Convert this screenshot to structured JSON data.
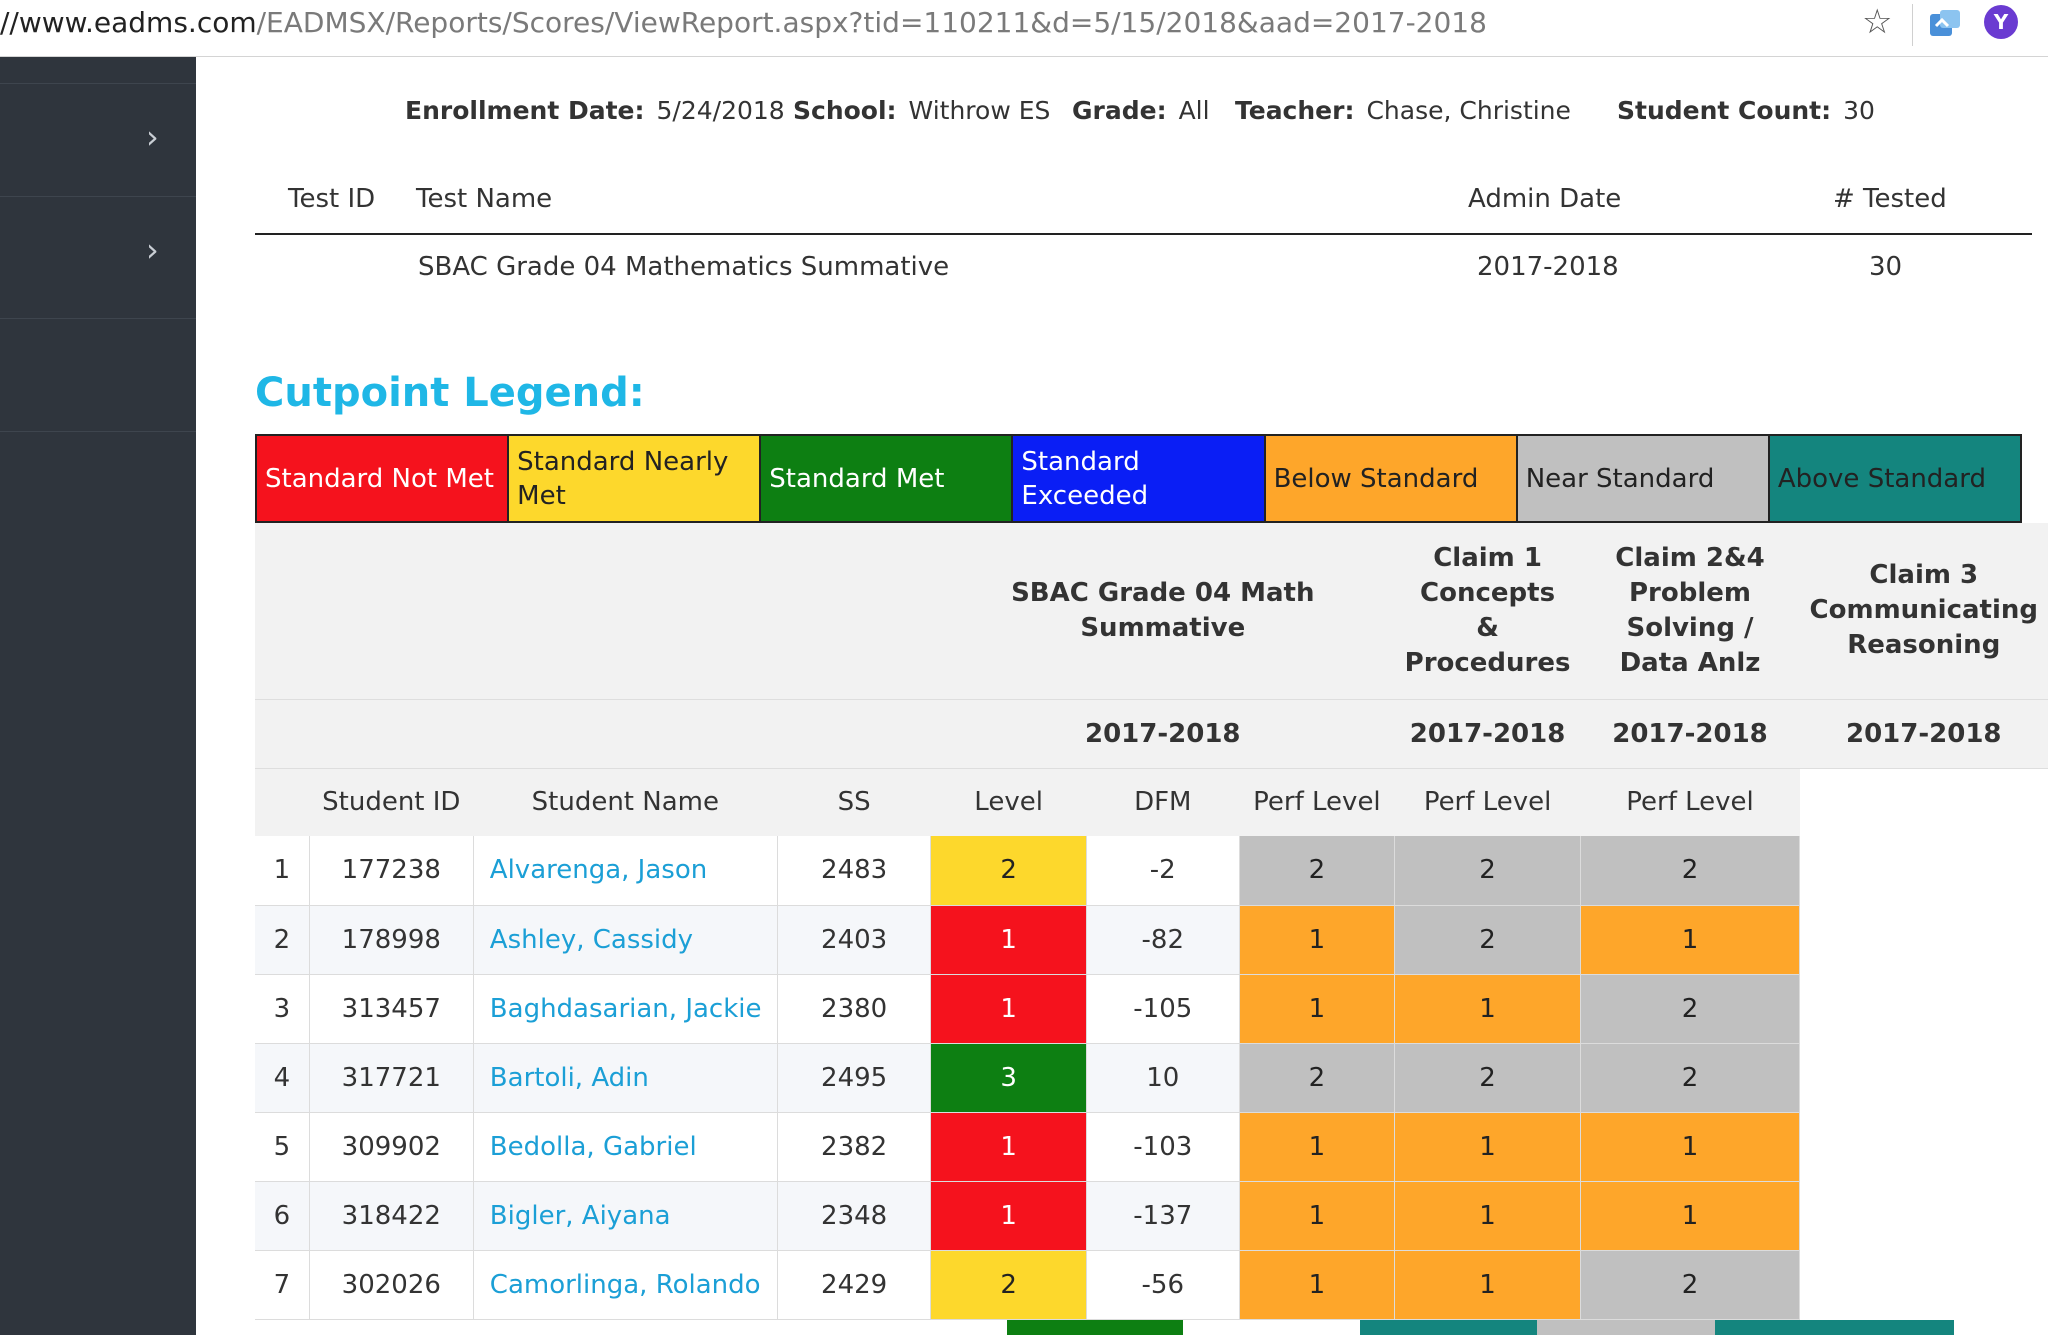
{
  "browser": {
    "url_host": "//www.eadms.com",
    "url_path": "/EADMSX/Reports/Scores/ViewReport.aspx?tid=110211&d=5/15/2018&aad=2017-2018",
    "profile_initial": "Y"
  },
  "sidebar": {
    "chevron": "›"
  },
  "info": {
    "enrollment_label": "Enrollment Date:",
    "enrollment_value": "5/24/2018",
    "school_label": "School:",
    "school_value": "Withrow ES",
    "grade_label": "Grade:",
    "grade_value": "All",
    "teacher_label": "Teacher:",
    "teacher_value": "Chase, Christine",
    "count_label": "Student Count:",
    "count_value": "30"
  },
  "test_table": {
    "headers": {
      "test_id": "Test ID",
      "test_name": "Test Name",
      "admin_date": "Admin Date",
      "tested": "# Tested"
    },
    "row": {
      "test_name": "SBAC Grade 04 Mathematics Summative",
      "admin_date": "2017-2018",
      "tested": "30"
    }
  },
  "legend": {
    "title": "Cutpoint Legend:",
    "items": [
      {
        "label": "Standard Not Met",
        "bg": "#f5121d",
        "fg": "#ffffff"
      },
      {
        "label": "Standard Nearly Met",
        "bg": "#fdd82c",
        "fg": "#222222"
      },
      {
        "label": "Standard Met",
        "bg": "#0d7f12",
        "fg": "#ffffff"
      },
      {
        "label": "Standard Exceeded",
        "bg": "#0a1ef5",
        "fg": "#ffffff"
      },
      {
        "label": "Below Standard",
        "bg": "#fea62a",
        "fg": "#222222"
      },
      {
        "label": "Near Standard",
        "bg": "#c0c0c0",
        "fg": "#222222"
      },
      {
        "label": "Above Standard",
        "bg": "#14857e",
        "fg": "#222222"
      }
    ]
  },
  "scores": {
    "test_header": "SBAC Grade 04 Math Summative",
    "claim1": "Claim 1 Concepts & Procedures",
    "claim24": "Claim 2&4 Problem Solving / Data Anlz",
    "claim3": "Claim 3 Communicating Reasoning",
    "year": "2017-2018",
    "columns": {
      "student_id": "Student ID",
      "student_name": "Student Name",
      "ss": "SS",
      "level": "Level",
      "dfm": "DFM",
      "perf1": "Perf Level",
      "perf2": "Perf Level",
      "perf3": "Perf Level"
    },
    "rows": [
      {
        "n": "1",
        "id": "177238",
        "name": "Alvarenga, Jason",
        "ss": "2483",
        "level": "2",
        "level_color": "yellow",
        "dfm": "-2",
        "c1": "2",
        "c1_color": "gray",
        "c2": "2",
        "c2_color": "gray",
        "c3": "2",
        "c3_color": "gray"
      },
      {
        "n": "2",
        "id": "178998",
        "name": "Ashley, Cassidy",
        "ss": "2403",
        "level": "1",
        "level_color": "red",
        "dfm": "-82",
        "c1": "1",
        "c1_color": "orange",
        "c2": "2",
        "c2_color": "gray",
        "c3": "1",
        "c3_color": "orange"
      },
      {
        "n": "3",
        "id": "313457",
        "name": "Baghdasarian, Jackie",
        "ss": "2380",
        "level": "1",
        "level_color": "red",
        "dfm": "-105",
        "c1": "1",
        "c1_color": "orange",
        "c2": "1",
        "c2_color": "orange",
        "c3": "2",
        "c3_color": "gray"
      },
      {
        "n": "4",
        "id": "317721",
        "name": "Bartoli, Adin",
        "ss": "2495",
        "level": "3",
        "level_color": "green",
        "dfm": "10",
        "c1": "2",
        "c1_color": "gray",
        "c2": "2",
        "c2_color": "gray",
        "c3": "2",
        "c3_color": "gray"
      },
      {
        "n": "5",
        "id": "309902",
        "name": "Bedolla, Gabriel",
        "ss": "2382",
        "level": "1",
        "level_color": "red",
        "dfm": "-103",
        "c1": "1",
        "c1_color": "orange",
        "c2": "1",
        "c2_color": "orange",
        "c3": "1",
        "c3_color": "orange"
      },
      {
        "n": "6",
        "id": "318422",
        "name": "Bigler, Aiyana",
        "ss": "2348",
        "level": "1",
        "level_color": "red",
        "dfm": "-137",
        "c1": "1",
        "c1_color": "orange",
        "c2": "1",
        "c2_color": "orange",
        "c3": "1",
        "c3_color": "orange"
      },
      {
        "n": "7",
        "id": "302026",
        "name": "Camorlinga, Rolando",
        "ss": "2429",
        "level": "2",
        "level_color": "yellow",
        "dfm": "-56",
        "c1": "1",
        "c1_color": "orange",
        "c2": "1",
        "c2_color": "orange",
        "c3": "2",
        "c3_color": "gray"
      }
    ]
  }
}
